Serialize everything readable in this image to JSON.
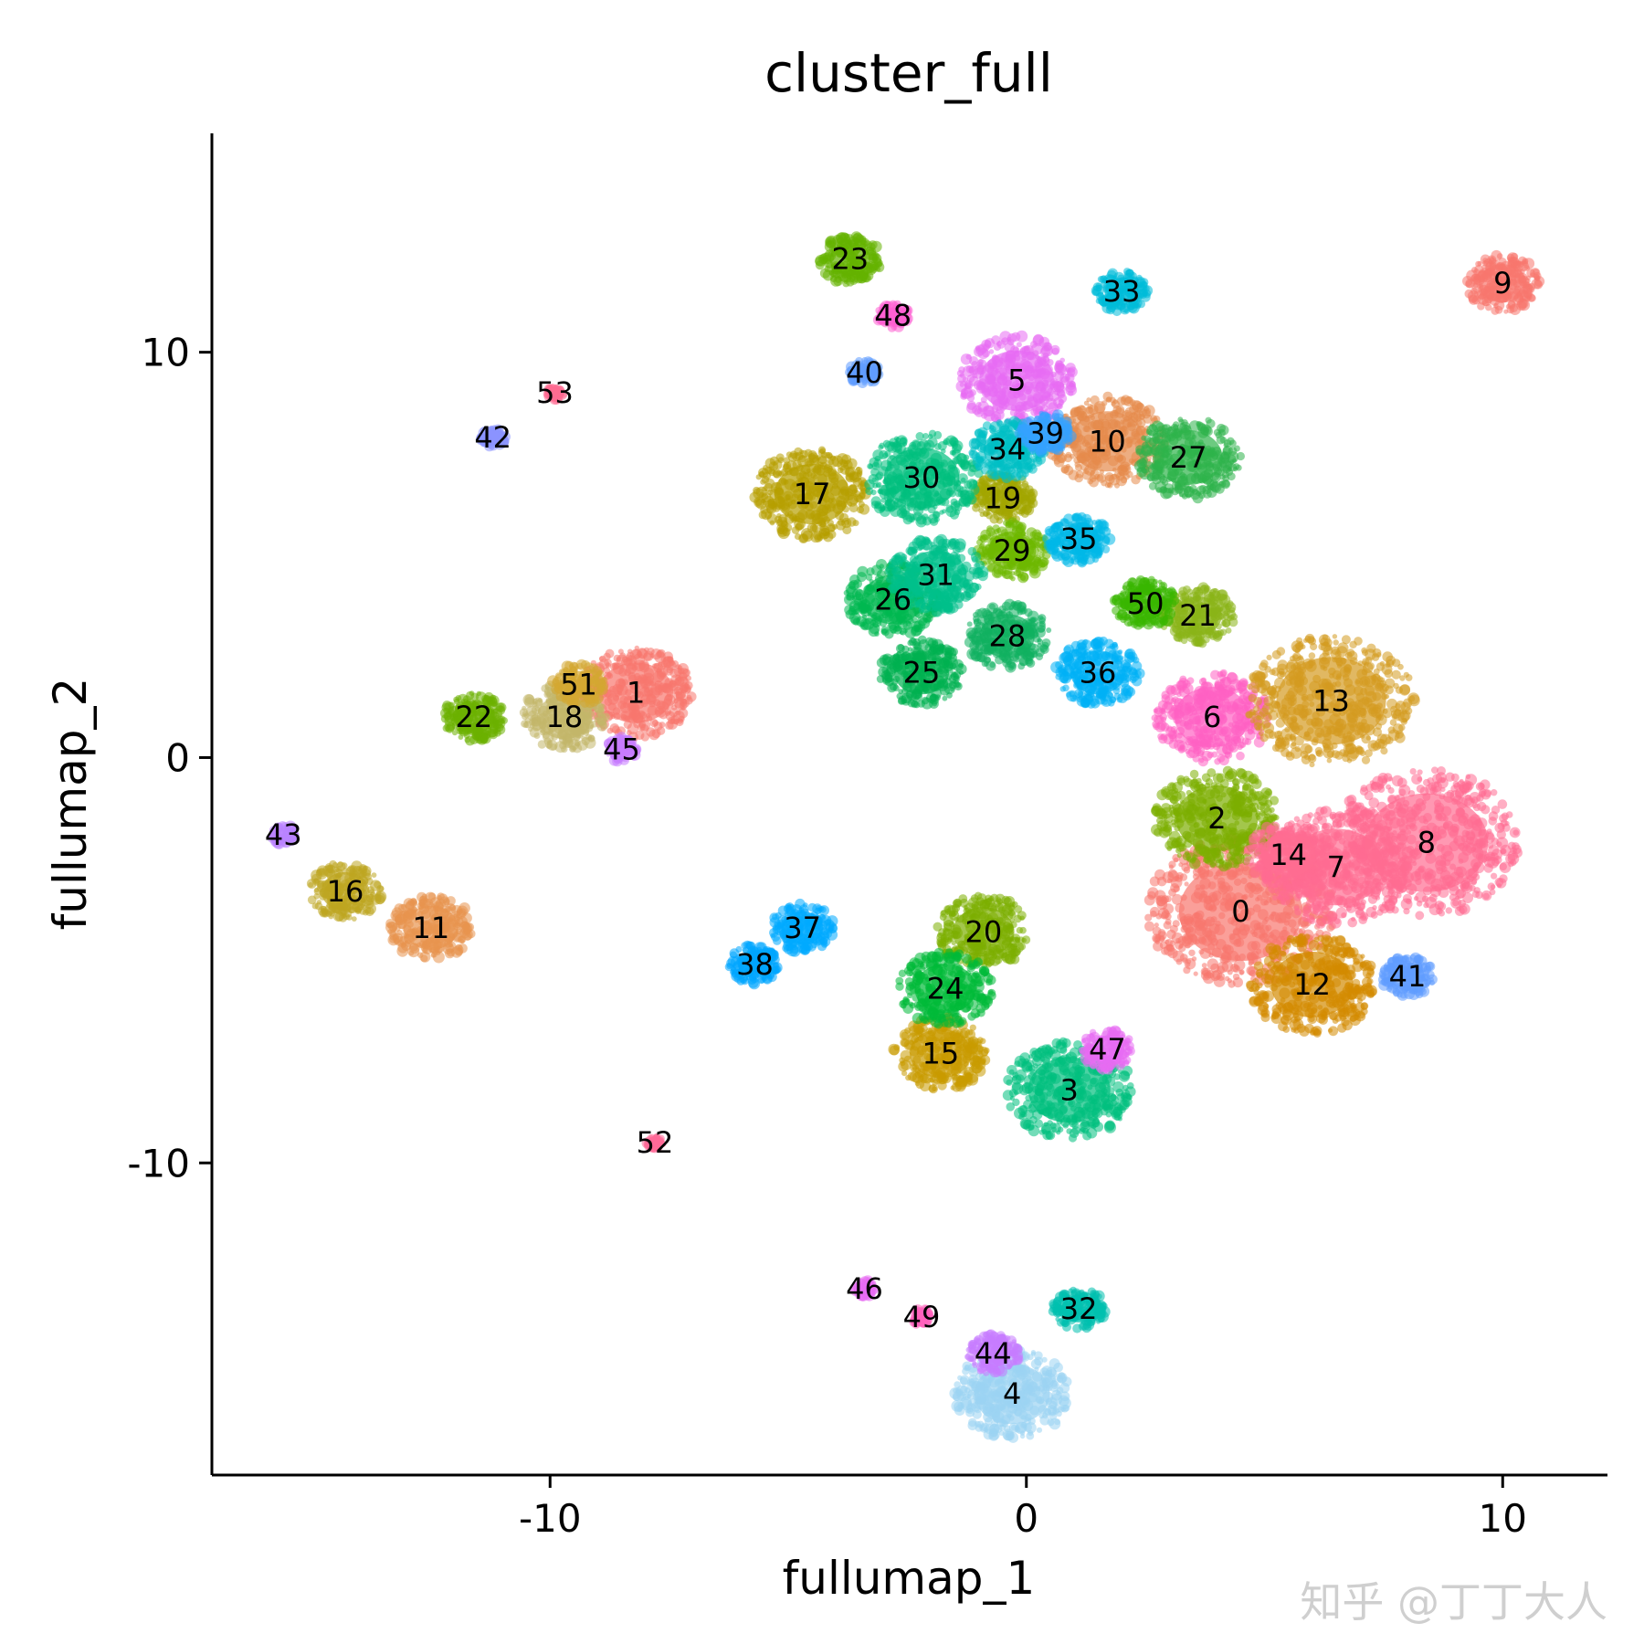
{
  "chart_data": {
    "type": "scatter",
    "title": "cluster_full",
    "xlabel": "fullumap_1",
    "ylabel": "fullumap_2",
    "xlim": [
      -17.1,
      12.2
    ],
    "ylim": [
      -17.7,
      15.4
    ],
    "xticks": [
      -10,
      0,
      10
    ],
    "yticks": [
      10,
      0,
      -10
    ],
    "grid": false,
    "legend": "none",
    "clusters": [
      {
        "label": "0",
        "x": 4.5,
        "y": -3.8,
        "color": "#F8766D"
      },
      {
        "label": "1",
        "x": -8.2,
        "y": 1.6,
        "color": "#F8766D"
      },
      {
        "label": "2",
        "x": 4.0,
        "y": -1.5,
        "color": "#7CAE00"
      },
      {
        "label": "3",
        "x": 0.9,
        "y": -8.2,
        "color": "#00BF7D"
      },
      {
        "label": "4",
        "x": -0.3,
        "y": -15.7,
        "color": "#9BD3F2"
      },
      {
        "label": "5",
        "x": -0.2,
        "y": 9.3,
        "color": "#E76BF3"
      },
      {
        "label": "6",
        "x": 3.9,
        "y": 1.0,
        "color": "#FF61C3"
      },
      {
        "label": "7",
        "x": 6.5,
        "y": -2.7,
        "color": "#FF6C91"
      },
      {
        "label": "8",
        "x": 8.4,
        "y": -2.1,
        "color": "#FF6C91"
      },
      {
        "label": "9",
        "x": 10.0,
        "y": 11.7,
        "color": "#F8766D"
      },
      {
        "label": "10",
        "x": 1.7,
        "y": 7.8,
        "color": "#E58A4B"
      },
      {
        "label": "11",
        "x": -12.5,
        "y": -4.2,
        "color": "#E8944F"
      },
      {
        "label": "12",
        "x": 6.0,
        "y": -5.6,
        "color": "#D38A00"
      },
      {
        "label": "13",
        "x": 6.4,
        "y": 1.4,
        "color": "#D49A1F"
      },
      {
        "label": "14",
        "x": 5.5,
        "y": -2.4,
        "color": "#FF6C91"
      },
      {
        "label": "15",
        "x": -1.8,
        "y": -7.3,
        "color": "#C99A00"
      },
      {
        "label": "16",
        "x": -14.3,
        "y": -3.3,
        "color": "#BDA520"
      },
      {
        "label": "17",
        "x": -4.5,
        "y": 6.5,
        "color": "#B79F00"
      },
      {
        "label": "18",
        "x": -9.7,
        "y": 1.0,
        "color": "#C3B66A"
      },
      {
        "label": "19",
        "x": -0.5,
        "y": 6.4,
        "color": "#A3A500"
      },
      {
        "label": "20",
        "x": -0.9,
        "y": -4.3,
        "color": "#7CAE00"
      },
      {
        "label": "21",
        "x": 3.6,
        "y": 3.5,
        "color": "#8AB418"
      },
      {
        "label": "22",
        "x": -11.6,
        "y": 1.0,
        "color": "#6BB100"
      },
      {
        "label": "23",
        "x": -3.7,
        "y": 12.3,
        "color": "#64B200"
      },
      {
        "label": "24",
        "x": -1.7,
        "y": -5.7,
        "color": "#00BA38"
      },
      {
        "label": "25",
        "x": -2.2,
        "y": 2.1,
        "color": "#00B050"
      },
      {
        "label": "26",
        "x": -2.8,
        "y": 3.9,
        "color": "#00B850"
      },
      {
        "label": "27",
        "x": 3.4,
        "y": 7.4,
        "color": "#2DB34A"
      },
      {
        "label": "28",
        "x": -0.4,
        "y": 3.0,
        "color": "#10B060"
      },
      {
        "label": "29",
        "x": -0.3,
        "y": 5.1,
        "color": "#6EB800"
      },
      {
        "label": "30",
        "x": -2.2,
        "y": 6.9,
        "color": "#00BF7D"
      },
      {
        "label": "31",
        "x": -1.9,
        "y": 4.5,
        "color": "#00C08B"
      },
      {
        "label": "32",
        "x": 1.1,
        "y": -13.6,
        "color": "#00C0AF"
      },
      {
        "label": "33",
        "x": 2.0,
        "y": 11.5,
        "color": "#00BCD8"
      },
      {
        "label": "34",
        "x": -0.4,
        "y": 7.6,
        "color": "#00BFC4"
      },
      {
        "label": "35",
        "x": 1.1,
        "y": 5.4,
        "color": "#00B8E7"
      },
      {
        "label": "36",
        "x": 1.5,
        "y": 2.1,
        "color": "#00B0F6"
      },
      {
        "label": "37",
        "x": -4.7,
        "y": -4.2,
        "color": "#00A9FF"
      },
      {
        "label": "38",
        "x": -5.7,
        "y": -5.1,
        "color": "#00A5FF"
      },
      {
        "label": "39",
        "x": 0.4,
        "y": 8.0,
        "color": "#35A2FF"
      },
      {
        "label": "40",
        "x": -3.4,
        "y": 9.5,
        "color": "#619CFF"
      },
      {
        "label": "41",
        "x": 8.0,
        "y": -5.4,
        "color": "#619CFF"
      },
      {
        "label": "42",
        "x": -11.2,
        "y": 7.9,
        "color": "#8B93FF"
      },
      {
        "label": "43",
        "x": -15.6,
        "y": -1.9,
        "color": "#B983FF"
      },
      {
        "label": "44",
        "x": -0.7,
        "y": -14.7,
        "color": "#C77CFF"
      },
      {
        "label": "45",
        "x": -8.5,
        "y": 0.2,
        "color": "#C77CFF"
      },
      {
        "label": "46",
        "x": -3.4,
        "y": -13.1,
        "color": "#E76BF3"
      },
      {
        "label": "47",
        "x": 1.7,
        "y": -7.2,
        "color": "#E76BF3"
      },
      {
        "label": "48",
        "x": -2.8,
        "y": 10.9,
        "color": "#FD61D1"
      },
      {
        "label": "49",
        "x": -2.2,
        "y": -13.8,
        "color": "#FF62BC"
      },
      {
        "label": "50",
        "x": 2.5,
        "y": 3.8,
        "color": "#39B600"
      },
      {
        "label": "51",
        "x": -9.4,
        "y": 1.8,
        "color": "#D4A832"
      },
      {
        "label": "52",
        "x": -7.8,
        "y": -9.5,
        "color": "#FF6A98"
      },
      {
        "label": "53",
        "x": -9.9,
        "y": 9.0,
        "color": "#FF6C91"
      }
    ]
  },
  "watermark": "知乎 @丁丁大人"
}
